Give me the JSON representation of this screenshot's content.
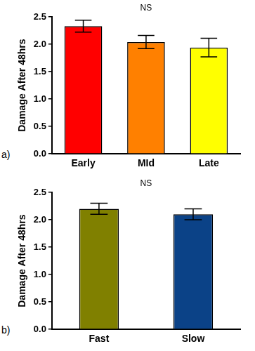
{
  "chart_data": [
    {
      "type": "bar",
      "panel_label": "a)",
      "annotations": [
        "NS"
      ],
      "y_label": "Damage After 48hrs",
      "categories": [
        "Early",
        "MId",
        "Late"
      ],
      "values": [
        2.33,
        2.04,
        1.94
      ],
      "errors": [
        0.11,
        0.12,
        0.17
      ],
      "colors": [
        "#ff0000",
        "#ff8000",
        "#ffff00"
      ],
      "ylim": [
        0,
        2.5
      ],
      "yticks": [
        {
          "value": 0,
          "label": "0.0"
        },
        0.5,
        {
          "value": 1,
          "label": "1.0"
        },
        1.5,
        {
          "value": 2,
          "label": "2.0"
        },
        2.5
      ],
      "grid": false
    },
    {
      "type": "bar",
      "panel_label": "b)",
      "annotations": [
        "NS"
      ],
      "y_label": "Damage After 48hrs",
      "categories": [
        "Fast",
        "Slow"
      ],
      "values": [
        2.2,
        2.1
      ],
      "errors": [
        0.1,
        0.1
      ],
      "colors": [
        "#808000",
        "#0b4287"
      ],
      "ylim": [
        0,
        2.5
      ],
      "yticks": [
        {
          "value": 0,
          "label": "0.0"
        },
        0.5,
        {
          "value": 1,
          "label": "1.0"
        },
        1.5,
        {
          "value": 2,
          "label": "2.0"
        },
        2.5
      ],
      "grid": false
    }
  ]
}
